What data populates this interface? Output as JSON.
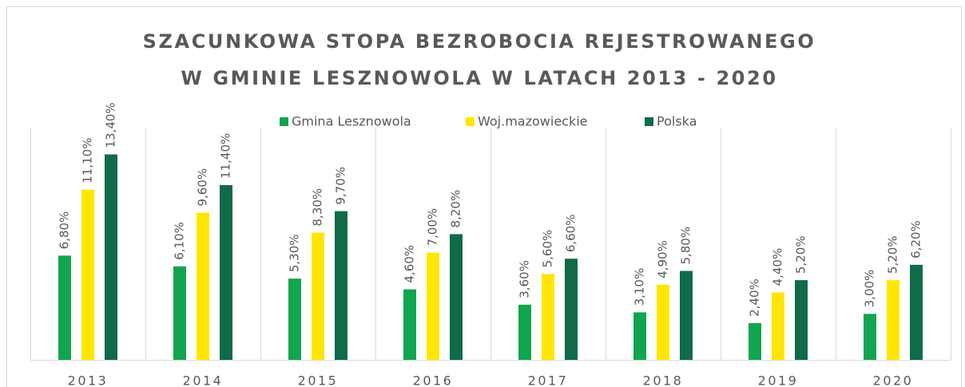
{
  "chart_data": {
    "type": "bar",
    "title": [
      "SZACUNKOWA STOPA BEZROBOCIA REJESTROWANEGO",
      "W GMINIE LESZNOWOLA W LATACH 2013 - 2020"
    ],
    "categories": [
      "2013",
      "2014",
      "2015",
      "2016",
      "2017",
      "2018",
      "2019",
      "2020"
    ],
    "series": [
      {
        "name": "Gmina Lesznowola",
        "color": "#12a54f",
        "values": [
          6.8,
          6.1,
          5.3,
          4.6,
          3.6,
          3.1,
          2.4,
          3.0
        ],
        "value_labels": [
          "6,80%",
          "6,10%",
          "5,30%",
          "4,60%",
          "3,60%",
          "3,10%",
          "2,40%",
          "3,00%"
        ]
      },
      {
        "name": "Woj.mazowieckie",
        "color": "#ffe600",
        "values": [
          11.1,
          9.6,
          8.3,
          7.0,
          5.6,
          4.9,
          4.4,
          5.2
        ],
        "value_labels": [
          "11,10%",
          "9,60%",
          "8,30%",
          "7,00%",
          "5,60%",
          "4,90%",
          "4,40%",
          "5,20%"
        ]
      },
      {
        "name": "Polska",
        "color": "#0f6b48",
        "values": [
          13.4,
          11.4,
          9.7,
          8.2,
          6.6,
          5.8,
          5.2,
          6.2
        ],
        "value_labels": [
          "13,40%",
          "11,40%",
          "9,70%",
          "8,20%",
          "6,60%",
          "5,80%",
          "5,20%",
          "6,20%"
        ]
      }
    ],
    "ylim": [
      0,
      14
    ]
  }
}
